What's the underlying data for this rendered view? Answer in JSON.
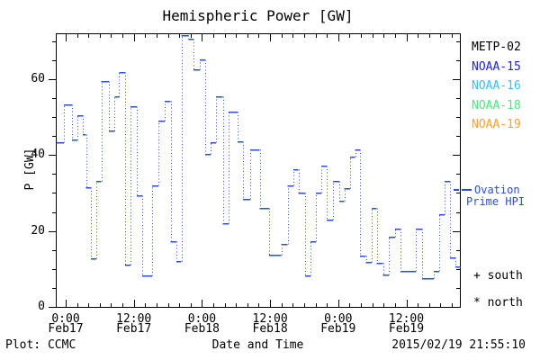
{
  "title": "Hemispheric Power [GW]",
  "y_axis": {
    "label": "P [GW]",
    "tick_labels": [
      "0",
      "20",
      "40",
      "60"
    ],
    "major_step": 20,
    "minor_step": 5,
    "range": [
      0,
      72.1
    ]
  },
  "x_axis": {
    "label": "Date and Time",
    "tick_times": [
      "0:00",
      "12:00",
      "0:00",
      "12:00",
      "0:00",
      "12:00"
    ],
    "tick_dates": [
      "Feb17",
      "Feb17",
      "Feb18",
      "Feb18",
      "Feb19",
      "Feb19"
    ],
    "major_step_hours": 12,
    "minor_step_hours": 2,
    "range_hours": [
      -1.7,
      69.6
    ]
  },
  "legend": {
    "items": [
      {
        "label": "METP-02",
        "color": "#000000"
      },
      {
        "label": "NOAA-15",
        "color": "#2121e8"
      },
      {
        "label": "NOAA-16",
        "color": "#3fbcff"
      },
      {
        "label": "NOAA-18",
        "color": "#50e680"
      },
      {
        "label": "NOAA-19",
        "color": "#ffa033"
      }
    ]
  },
  "ovation": {
    "line1": "Ovation",
    "line2": "Prime HPI",
    "color": "#2a4fd2"
  },
  "markers": {
    "south": "+ south",
    "north": "* north"
  },
  "footer": {
    "left": "Plot: CCMC",
    "right": "2015/02/19 21:55:10"
  },
  "colors": {
    "line": "#2a4fd2",
    "frame": "#000000",
    "background": "#ffffff"
  },
  "chart_data": {
    "type": "line",
    "style": "step-horizontal-dashes-with-dotted-connectors",
    "title": "Hemispheric Power [GW]",
    "xlabel": "Date and Time",
    "ylabel": "P [GW]",
    "x_unit": "hours since Feb17 0:00",
    "xlim": [
      -1.7,
      69.6
    ],
    "ylim": [
      0,
      72.1
    ],
    "x_end_hours": 69.6,
    "x_start_hours": [
      -1.7,
      -0.3,
      1.1,
      2.1,
      3.0,
      3.6,
      4.4,
      5.4,
      6.3,
      7.6,
      8.6,
      9.4,
      10.5,
      11.4,
      12.5,
      13.5,
      14.3,
      15.2,
      16.3,
      17.4,
      18.5,
      19.5,
      20.4,
      21.6,
      22.5,
      23.6,
      24.6,
      25.5,
      26.5,
      27.7,
      28.7,
      30.3,
      31.2,
      32.5,
      34.2,
      35.8,
      38.0,
      39.1,
      40.1,
      41.0,
      42.2,
      43.1,
      44.1,
      45.0,
      46.0,
      47.1,
      48.2,
      49.1,
      50.1,
      51.0,
      51.8,
      52.9,
      53.9,
      54.8,
      55.9,
      56.9,
      58.0,
      59.0,
      59.9,
      61.7,
      62.8,
      63.9,
      64.8,
      65.8,
      66.7,
      67.7,
      68.6
    ],
    "values_gw": [
      43.3,
      53.3,
      44.0,
      50.4,
      45.6,
      31.5,
      12.9,
      33.3,
      59.5,
      46.4,
      55.5,
      61.9,
      11.1,
      52.8,
      29.4,
      8.3,
      8.3,
      32.1,
      49.2,
      54.4,
      17.4,
      12.2,
      71.6,
      70.6,
      62.5,
      65.2,
      40.4,
      43.3,
      55.5,
      22.1,
      51.4,
      43.6,
      28.5,
      41.6,
      26.2,
      13.8,
      16.6,
      32.1,
      36.4,
      30.1,
      8.3,
      17.4,
      30.1,
      37.2,
      22.9,
      33.3,
      28.1,
      31.3,
      39.6,
      41.4,
      13.4,
      11.8,
      26.1,
      11.7,
      8.6,
      18.4,
      20.7,
      9.5,
      9.5,
      20.7,
      7.6,
      7.6,
      9.5,
      24.5,
      33.1,
      13.0,
      10.6
    ]
  }
}
